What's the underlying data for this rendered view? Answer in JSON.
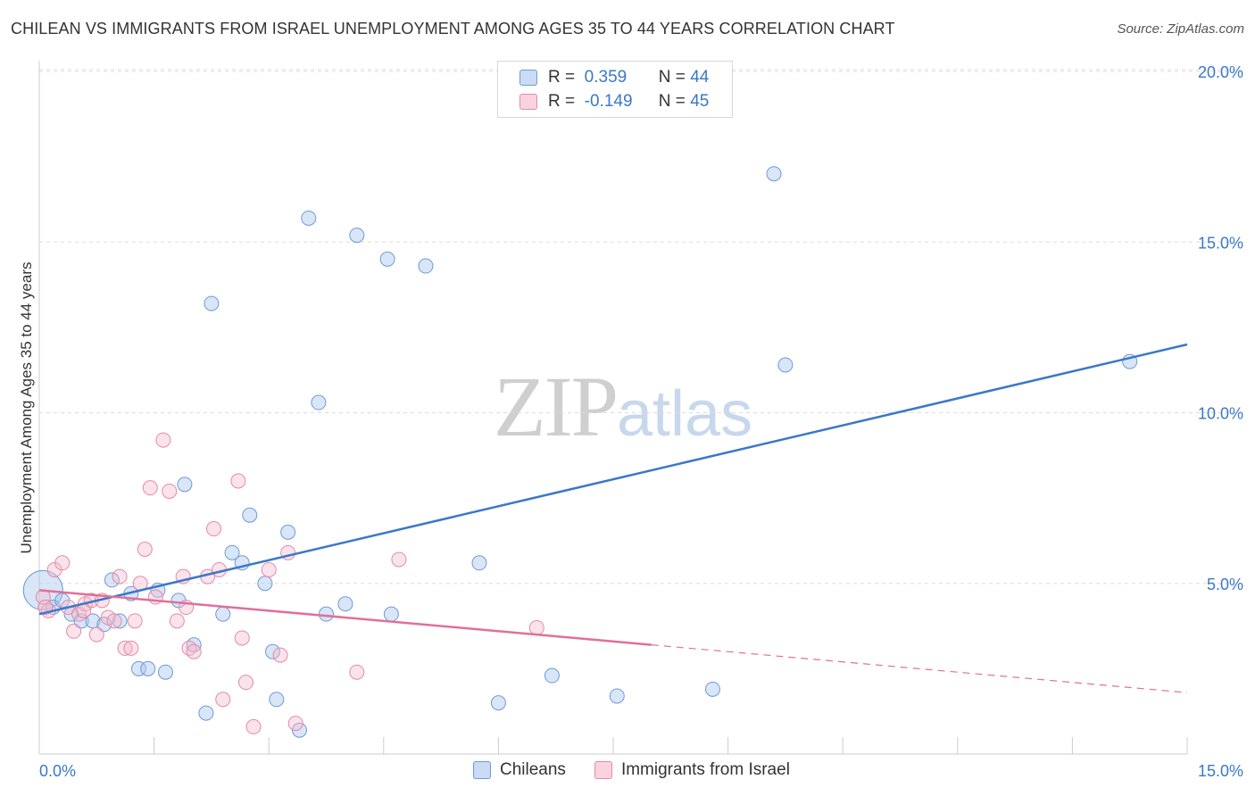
{
  "header": {
    "title": "CHILEAN VS IMMIGRANTS FROM ISRAEL UNEMPLOYMENT AMONG AGES 35 TO 44 YEARS CORRELATION CHART",
    "source": "Source: ZipAtlas.com"
  },
  "watermark": {
    "zip": "ZIP",
    "atlas": "atlas"
  },
  "legend": {
    "rows": [
      {
        "r_label": "R =",
        "r_value": "0.359",
        "n_label": "N =",
        "n_value": "44",
        "color": "#a9c7ee"
      },
      {
        "r_label": "R =",
        "r_value": "-0.149",
        "n_label": "N =",
        "n_value": "45",
        "color": "#f6b9cc"
      }
    ]
  },
  "bottom_legend": {
    "items": [
      "Chileans",
      "Immigrants from Israel"
    ]
  },
  "chart_data": {
    "type": "scatter",
    "title": "CHILEAN VS IMMIGRANTS FROM ISRAEL UNEMPLOYMENT AMONG AGES 35 TO 44 YEARS CORRELATION CHART",
    "xlabel": "",
    "ylabel": "Unemployment Among Ages 35 to 44 years",
    "xlim": [
      0,
      15
    ],
    "ylim": [
      0,
      20
    ],
    "x_tick_labels": [
      "0.0%",
      "15.0%"
    ],
    "y_tick_labels": [
      "5.0%",
      "10.0%",
      "15.0%",
      "20.0%"
    ],
    "y_ticks": [
      5,
      10,
      15,
      20
    ],
    "x_minor_ticks": [
      0,
      1.5,
      3,
      4.5,
      6,
      7.5,
      9,
      10.5,
      12,
      13.5,
      15
    ],
    "grid": "horizontal dashed",
    "colors": {
      "chileans": "#3a78c8",
      "israel": "#e0709a",
      "chileans_fill": "#a9c7ee",
      "israel_fill": "#f6b9cc",
      "tick_label": "#3a78c8"
    },
    "series": [
      {
        "name": "Chileans",
        "trend": {
          "x": [
            0,
            15
          ],
          "y": [
            4.1,
            12.0
          ],
          "dashed_from": null
        },
        "points": [
          {
            "x": 0.05,
            "y": 4.8,
            "big": true
          },
          {
            "x": 0.18,
            "y": 4.3
          },
          {
            "x": 0.3,
            "y": 4.5
          },
          {
            "x": 0.42,
            "y": 4.1
          },
          {
            "x": 0.55,
            "y": 3.9
          },
          {
            "x": 0.7,
            "y": 3.9
          },
          {
            "x": 0.85,
            "y": 3.8
          },
          {
            "x": 0.95,
            "y": 5.1
          },
          {
            "x": 1.05,
            "y": 3.9
          },
          {
            "x": 1.2,
            "y": 4.7
          },
          {
            "x": 1.3,
            "y": 2.5
          },
          {
            "x": 1.42,
            "y": 2.5
          },
          {
            "x": 1.55,
            "y": 4.8
          },
          {
            "x": 1.65,
            "y": 2.4
          },
          {
            "x": 1.82,
            "y": 4.5
          },
          {
            "x": 1.9,
            "y": 7.9
          },
          {
            "x": 2.02,
            "y": 3.2
          },
          {
            "x": 2.18,
            "y": 1.2
          },
          {
            "x": 2.25,
            "y": 13.2
          },
          {
            "x": 2.4,
            "y": 4.1
          },
          {
            "x": 2.52,
            "y": 5.9
          },
          {
            "x": 2.65,
            "y": 5.6
          },
          {
            "x": 2.75,
            "y": 7.0
          },
          {
            "x": 2.95,
            "y": 5.0
          },
          {
            "x": 3.05,
            "y": 3.0
          },
          {
            "x": 3.1,
            "y": 1.6
          },
          {
            "x": 3.25,
            "y": 6.5
          },
          {
            "x": 3.4,
            "y": 0.7
          },
          {
            "x": 3.52,
            "y": 15.7
          },
          {
            "x": 3.65,
            "y": 10.3
          },
          {
            "x": 3.75,
            "y": 4.1
          },
          {
            "x": 4.0,
            "y": 4.4
          },
          {
            "x": 4.15,
            "y": 15.2
          },
          {
            "x": 4.55,
            "y": 14.5
          },
          {
            "x": 4.6,
            "y": 4.1
          },
          {
            "x": 5.05,
            "y": 14.3
          },
          {
            "x": 5.75,
            "y": 5.6
          },
          {
            "x": 6.0,
            "y": 1.5
          },
          {
            "x": 6.7,
            "y": 2.3
          },
          {
            "x": 7.55,
            "y": 1.7
          },
          {
            "x": 8.8,
            "y": 1.9
          },
          {
            "x": 9.6,
            "y": 17.0
          },
          {
            "x": 9.75,
            "y": 11.4
          },
          {
            "x": 14.25,
            "y": 11.5
          }
        ]
      },
      {
        "name": "Immigrants from Israel",
        "trend": {
          "x": [
            0,
            15
          ],
          "y": [
            4.8,
            1.8
          ],
          "solid_until": 8.0
        },
        "points": [
          {
            "x": 0.05,
            "y": 4.6
          },
          {
            "x": 0.12,
            "y": 4.2
          },
          {
            "x": 0.2,
            "y": 5.4
          },
          {
            "x": 0.3,
            "y": 5.6
          },
          {
            "x": 0.38,
            "y": 4.3
          },
          {
            "x": 0.45,
            "y": 3.6
          },
          {
            "x": 0.52,
            "y": 4.1
          },
          {
            "x": 0.6,
            "y": 4.4
          },
          {
            "x": 0.68,
            "y": 4.5
          },
          {
            "x": 0.75,
            "y": 3.5
          },
          {
            "x": 0.82,
            "y": 4.5
          },
          {
            "x": 0.9,
            "y": 4.0
          },
          {
            "x": 0.98,
            "y": 3.9
          },
          {
            "x": 1.05,
            "y": 5.2
          },
          {
            "x": 1.12,
            "y": 3.1
          },
          {
            "x": 1.2,
            "y": 3.1
          },
          {
            "x": 1.25,
            "y": 3.9
          },
          {
            "x": 1.32,
            "y": 5.0
          },
          {
            "x": 1.38,
            "y": 6.0
          },
          {
            "x": 1.45,
            "y": 7.8
          },
          {
            "x": 1.52,
            "y": 4.6
          },
          {
            "x": 1.62,
            "y": 9.2
          },
          {
            "x": 1.7,
            "y": 7.7
          },
          {
            "x": 1.8,
            "y": 3.9
          },
          {
            "x": 1.88,
            "y": 5.2
          },
          {
            "x": 1.92,
            "y": 4.3
          },
          {
            "x": 1.96,
            "y": 3.1
          },
          {
            "x": 2.02,
            "y": 3.0
          },
          {
            "x": 2.2,
            "y": 5.2
          },
          {
            "x": 2.28,
            "y": 6.6
          },
          {
            "x": 2.35,
            "y": 5.4
          },
          {
            "x": 2.4,
            "y": 1.6
          },
          {
            "x": 2.6,
            "y": 8.0
          },
          {
            "x": 2.65,
            "y": 3.4
          },
          {
            "x": 2.7,
            "y": 2.1
          },
          {
            "x": 2.8,
            "y": 0.8
          },
          {
            "x": 3.0,
            "y": 5.4
          },
          {
            "x": 3.15,
            "y": 2.9
          },
          {
            "x": 3.25,
            "y": 5.9
          },
          {
            "x": 3.35,
            "y": 0.9
          },
          {
            "x": 4.15,
            "y": 2.4
          },
          {
            "x": 4.7,
            "y": 5.7
          },
          {
            "x": 6.5,
            "y": 3.7
          },
          {
            "x": 0.58,
            "y": 4.2
          },
          {
            "x": 0.08,
            "y": 4.3
          }
        ]
      }
    ]
  }
}
